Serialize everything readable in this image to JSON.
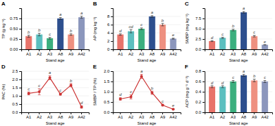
{
  "chart_data": [
    {
      "type": "bar",
      "title": "A",
      "xlabel": "Stand age",
      "ylabel": "TP (g kg⁻¹)",
      "categories": [
        "A1",
        "A2",
        "A3",
        "A8",
        "A9",
        "A42"
      ],
      "values": [
        0.32,
        0.36,
        0.27,
        0.75,
        0.36,
        0.78
      ],
      "errors": [
        0.025,
        0.03,
        0.02,
        0.025,
        0.02,
        0.025
      ],
      "annotations": [
        "b",
        "b",
        "c",
        "a",
        "b",
        "a"
      ],
      "colors": [
        "#E8736A",
        "#5BBFBF",
        "#3BAF7E",
        "#2D4F8E",
        "#EE9080",
        "#8B96BC"
      ],
      "ylim": [
        0,
        1.0
      ],
      "yticks": [
        {
          "value": 0,
          "label": "0.00"
        },
        0.25,
        {
          "value": 0.5,
          "label": "0.50"
        },
        0.75
      ],
      "grid": true
    },
    {
      "type": "bar",
      "title": "B",
      "xlabel": "Stand age",
      "ylabel": "AP (mg kg⁻¹)",
      "categories": [
        "A1",
        "A2",
        "A3",
        "A8",
        "A9",
        "A42"
      ],
      "values": [
        3.6,
        4.4,
        5.0,
        8.0,
        6.0,
        2.6
      ],
      "errors": [
        0.18,
        0.4,
        0.2,
        0.2,
        0.3,
        0.12
      ],
      "annotations": [
        "d",
        "cd",
        "c",
        "a",
        "b",
        "e"
      ],
      "colors": [
        "#E8736A",
        "#5BBFBF",
        "#3BAF7E",
        "#2D4F8E",
        "#EE9080",
        "#8B96BC"
      ],
      "ylim": [
        0,
        10
      ],
      "yticks": [
        0,
        2,
        4,
        6,
        8
      ],
      "grid": true
    },
    {
      "type": "bar",
      "title": "C",
      "xlabel": "Stand age",
      "ylabel": "SMBP (mg kg⁻¹)",
      "categories": [
        "A1",
        "A2",
        "A3",
        "A8",
        "A9",
        "A42"
      ],
      "values": [
        2.0,
        2.8,
        4.7,
        9.0,
        3.2,
        1.1
      ],
      "errors": [
        0.1,
        0.15,
        0.2,
        0.2,
        0.2,
        0.05
      ],
      "annotations": [
        "d",
        "c",
        "b",
        "a",
        "c",
        "e"
      ],
      "colors": [
        "#E8736A",
        "#5BBFBF",
        "#3BAF7E",
        "#2D4F8E",
        "#EE9080",
        "#8B96BC"
      ],
      "ylim": [
        0,
        10
      ],
      "yticks": [
        {
          "value": 0,
          "label": "0.0"
        },
        2.5,
        {
          "value": 5,
          "label": "5.0"
        },
        7.5
      ],
      "grid": true
    },
    {
      "type": "line",
      "title": "D",
      "xlabel": "Stand age",
      "ylabel": "PAC (%)",
      "categories": [
        "A1",
        "A2",
        "A3",
        "A8",
        "A9",
        "A42"
      ],
      "values": [
        1.15,
        1.25,
        2.1,
        1.1,
        1.65,
        0.32
      ],
      "errors": [
        0.09,
        0.18,
        0.12,
        0.06,
        0.1,
        0.07
      ],
      "annotations": [
        "c",
        "c",
        "a",
        "c",
        "b",
        "d"
      ],
      "color": "#CC3333",
      "marker": "circle",
      "line_style": "solid",
      "ylim": [
        0,
        2.5
      ],
      "yticks": [
        {
          "value": 0,
          "label": "0.0"
        },
        0.5,
        {
          "value": 1,
          "label": "1.0"
        },
        1.5,
        {
          "value": 2,
          "label": "2.0"
        },
        2.5
      ],
      "grid": true
    },
    {
      "type": "line",
      "title": "E",
      "xlabel": "Stand age",
      "ylabel": "SMBP / TP (%)",
      "categories": [
        "A1",
        "A2",
        "A3",
        "A8",
        "A9",
        "A42"
      ],
      "values": [
        0.65,
        0.75,
        1.75,
        0.95,
        0.35,
        0.15
      ],
      "errors": [
        0.06,
        0.1,
        0.1,
        0.08,
        0.04,
        0.025
      ],
      "annotations": [
        "d",
        "c",
        "a",
        "b",
        "c",
        "e"
      ],
      "color": "#CC3333",
      "marker": "circle",
      "line_style": "solid",
      "ylim": [
        0,
        2.0
      ],
      "yticks": [
        {
          "value": 0,
          "label": "0.0"
        },
        0.5,
        {
          "value": 1,
          "label": "1.0"
        },
        1.5,
        {
          "value": 2,
          "label": "2.0"
        }
      ],
      "grid": true
    },
    {
      "type": "bar",
      "title": "F",
      "xlabel": "Stand age",
      "ylabel": "ACP (mg g⁻¹ d⁻¹)",
      "categories": [
        "A1",
        "A2",
        "A3",
        "A8",
        "A9",
        "A42"
      ],
      "values": [
        0.5,
        0.5,
        0.6,
        0.72,
        0.62,
        0.6
      ],
      "errors": [
        0.02,
        0.02,
        0.02,
        0.02,
        0.025,
        0.02
      ],
      "annotations": [
        "d",
        "d",
        "c",
        "a",
        "b",
        "c"
      ],
      "colors": [
        "#E8736A",
        "#5BBFBF",
        "#3BAF7E",
        "#2D4F8E",
        "#EE9080",
        "#8B96BC"
      ],
      "ylim": [
        0,
        0.8
      ],
      "yticks": [
        {
          "value": 0,
          "label": "0.0"
        },
        0.2,
        0.4,
        0.6,
        0.8
      ],
      "grid": true
    }
  ]
}
